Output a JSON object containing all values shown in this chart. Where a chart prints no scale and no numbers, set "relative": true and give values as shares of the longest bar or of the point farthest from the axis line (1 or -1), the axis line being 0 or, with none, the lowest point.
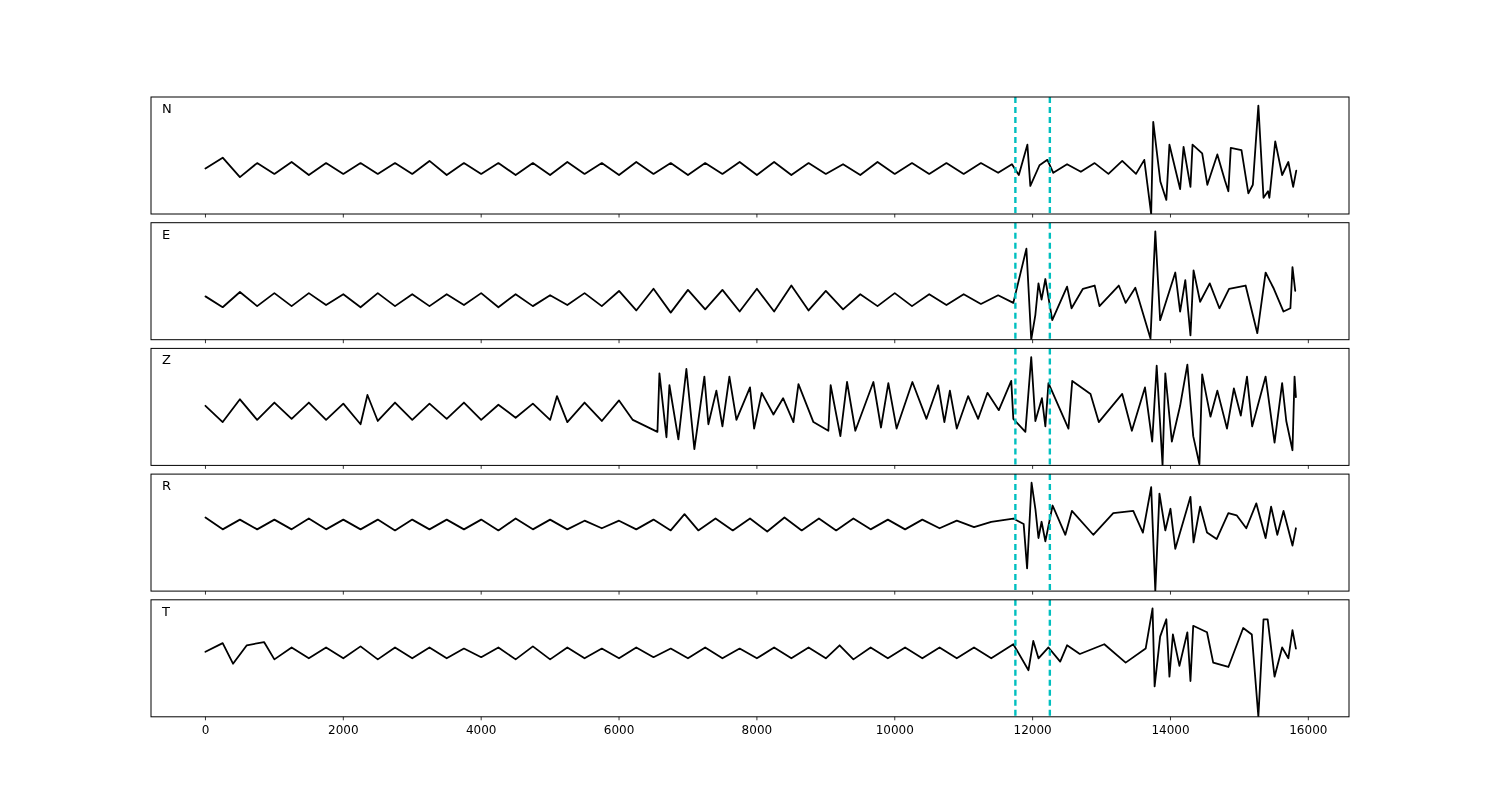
{
  "chart_data": [
    {
      "type": "line",
      "title": "N",
      "relative": true,
      "xlim": [
        -790,
        16590
      ],
      "xticks": [
        0,
        2000,
        4000,
        6000,
        8000,
        10000,
        12000,
        14000,
        16000
      ],
      "tick_labels": false,
      "grid": false,
      "line_style": "solid",
      "marker": "none",
      "ref_lines": [
        {
          "axis": "x",
          "value": 11750,
          "color": "#00bfbf",
          "line_style": "dashed"
        },
        {
          "axis": "x",
          "value": 12250,
          "color": "#00bfbf",
          "line_style": "dashed"
        }
      ],
      "x": [
        0,
        250,
        500,
        750,
        1000,
        1250,
        1500,
        1750,
        2000,
        2250,
        2500,
        2750,
        3000,
        3250,
        3500,
        3750,
        4000,
        4250,
        4500,
        4750,
        5000,
        5250,
        5500,
        5750,
        6000,
        6250,
        6500,
        6750,
        7000,
        7250,
        7500,
        7750,
        8000,
        8250,
        8500,
        8750,
        9000,
        9250,
        9500,
        9750,
        10000,
        10250,
        10500,
        10750,
        11000,
        11250,
        11500,
        11700,
        11800,
        11924,
        11967,
        12100,
        12214,
        12300,
        12500,
        12700,
        12900,
        13100,
        13300,
        13500,
        13620,
        13720,
        13750,
        13853,
        13940,
        13985,
        14140,
        14190,
        14290,
        14320,
        14460,
        14535,
        14680,
        14790,
        14840,
        14875,
        15030,
        15130,
        15195,
        15275,
        15350,
        15415,
        15435,
        15520,
        15620,
        15710,
        15780,
        15825
      ],
      "series": [
        {
          "color": "#000000",
          "values": [
            0.42,
            0.52,
            0.34,
            0.47,
            0.37,
            0.48,
            0.36,
            0.47,
            0.37,
            0.47,
            0.37,
            0.47,
            0.37,
            0.49,
            0.36,
            0.47,
            0.37,
            0.47,
            0.36,
            0.47,
            0.36,
            0.48,
            0.37,
            0.47,
            0.36,
            0.48,
            0.37,
            0.47,
            0.36,
            0.47,
            0.37,
            0.48,
            0.36,
            0.48,
            0.36,
            0.47,
            0.37,
            0.46,
            0.36,
            0.48,
            0.37,
            0.47,
            0.37,
            0.47,
            0.37,
            0.47,
            0.38,
            0.46,
            0.36,
            0.64,
            0.26,
            0.45,
            0.5,
            0.38,
            0.46,
            0.39,
            0.47,
            0.37,
            0.49,
            0.37,
            0.5,
            0.0,
            0.85,
            0.3,
            0.13,
            0.64,
            0.23,
            0.62,
            0.25,
            0.64,
            0.56,
            0.27,
            0.55,
            0.31,
            0.21,
            0.61,
            0.59,
            0.19,
            0.27,
            1.0,
            0.15,
            0.21,
            0.15,
            0.67,
            0.36,
            0.48,
            0.25,
            0.4
          ]
        }
      ]
    },
    {
      "type": "line",
      "title": "E",
      "relative": true,
      "xlim": [
        -790,
        16590
      ],
      "xticks": [
        0,
        2000,
        4000,
        6000,
        8000,
        10000,
        12000,
        14000,
        16000
      ],
      "tick_labels": false,
      "grid": false,
      "line_style": "solid",
      "marker": "none",
      "ref_lines": [
        {
          "axis": "x",
          "value": 11750,
          "color": "#00bfbf",
          "line_style": "dashed"
        },
        {
          "axis": "x",
          "value": 12250,
          "color": "#00bfbf",
          "line_style": "dashed"
        }
      ],
      "x": [
        0,
        250,
        500,
        750,
        1000,
        1250,
        1500,
        1750,
        2000,
        2250,
        2500,
        2750,
        3000,
        3250,
        3500,
        3750,
        4000,
        4250,
        4500,
        4750,
        5000,
        5250,
        5500,
        5750,
        6000,
        6250,
        6500,
        6750,
        7000,
        7250,
        7500,
        7750,
        8000,
        8250,
        8500,
        8750,
        9000,
        9250,
        9500,
        9750,
        10000,
        10250,
        10500,
        10750,
        11000,
        11250,
        11500,
        11720,
        11910,
        11980,
        12040,
        12085,
        12130,
        12185,
        12285,
        12500,
        12565,
        12730,
        12900,
        12970,
        13250,
        13350,
        13490,
        13710,
        13780,
        13850,
        14070,
        14140,
        14215,
        14290,
        14335,
        14430,
        14570,
        14710,
        14850,
        15090,
        15260,
        15380,
        15500,
        15640,
        15740,
        15770,
        15810
      ],
      "series": [
        {
          "color": "#000000",
          "values": [
            0.4,
            0.3,
            0.44,
            0.31,
            0.43,
            0.31,
            0.43,
            0.32,
            0.42,
            0.3,
            0.43,
            0.31,
            0.42,
            0.31,
            0.42,
            0.32,
            0.43,
            0.3,
            0.42,
            0.31,
            0.41,
            0.32,
            0.43,
            0.31,
            0.45,
            0.27,
            0.47,
            0.25,
            0.46,
            0.28,
            0.46,
            0.26,
            0.47,
            0.26,
            0.5,
            0.27,
            0.45,
            0.28,
            0.42,
            0.31,
            0.43,
            0.31,
            0.42,
            0.32,
            0.42,
            0.33,
            0.41,
            0.34,
            0.84,
            0.0,
            0.23,
            0.52,
            0.37,
            0.56,
            0.18,
            0.49,
            0.29,
            0.47,
            0.5,
            0.31,
            0.5,
            0.34,
            0.48,
            0.01,
            1.0,
            0.18,
            0.62,
            0.26,
            0.55,
            0.04,
            0.64,
            0.35,
            0.52,
            0.29,
            0.47,
            0.5,
            0.06,
            0.62,
            0.47,
            0.26,
            0.29,
            0.67,
            0.45
          ]
        }
      ]
    },
    {
      "type": "line",
      "title": "Z",
      "relative": true,
      "xlim": [
        -790,
        16590
      ],
      "xticks": [
        0,
        2000,
        4000,
        6000,
        8000,
        10000,
        12000,
        14000,
        16000
      ],
      "tick_labels": false,
      "grid": false,
      "line_style": "solid",
      "marker": "none",
      "ref_lines": [
        {
          "axis": "x",
          "value": 11750,
          "color": "#00bfbf",
          "line_style": "dashed"
        },
        {
          "axis": "x",
          "value": 12250,
          "color": "#00bfbf",
          "line_style": "dashed"
        }
      ],
      "x": [
        0,
        250,
        500,
        750,
        1000,
        1250,
        1500,
        1750,
        2000,
        2250,
        2350,
        2500,
        2750,
        3000,
        3250,
        3500,
        3750,
        4000,
        4250,
        4500,
        4750,
        5000,
        5100,
        5250,
        5500,
        5750,
        6000,
        6200,
        6557,
        6586,
        6688,
        6731,
        6861,
        6977,
        7093,
        7238,
        7296,
        7412,
        7500,
        7601,
        7703,
        7900,
        7960,
        8070,
        8240,
        8380,
        8530,
        8603,
        8820,
        9037,
        9070,
        9211,
        9308,
        9428,
        9690,
        9800,
        9907,
        10027,
        10256,
        10460,
        10630,
        10720,
        10800,
        10900,
        11065,
        11210,
        11345,
        11510,
        11690,
        11720,
        11895,
        11980,
        12040,
        12135,
        12185,
        12230,
        12520,
        12575,
        12840,
        12960,
        13300,
        13440,
        13630,
        13735,
        13800,
        13885,
        13925,
        14020,
        14140,
        14245,
        14330,
        14420,
        14460,
        14580,
        14680,
        14820,
        14920,
        15020,
        15110,
        15185,
        15380,
        15510,
        15620,
        15680,
        15770,
        15800,
        15820
      ],
      "series": [
        {
          "color": "#000000",
          "values": [
            0.55,
            0.4,
            0.61,
            0.42,
            0.58,
            0.43,
            0.58,
            0.42,
            0.57,
            0.38,
            0.65,
            0.41,
            0.58,
            0.42,
            0.57,
            0.43,
            0.58,
            0.42,
            0.56,
            0.44,
            0.57,
            0.42,
            0.64,
            0.4,
            0.58,
            0.41,
            0.6,
            0.42,
            0.31,
            0.85,
            0.26,
            0.74,
            0.24,
            0.89,
            0.15,
            0.82,
            0.38,
            0.69,
            0.36,
            0.82,
            0.42,
            0.72,
            0.34,
            0.67,
            0.47,
            0.62,
            0.4,
            0.75,
            0.4,
            0.32,
            0.74,
            0.27,
            0.77,
            0.32,
            0.77,
            0.35,
            0.76,
            0.34,
            0.77,
            0.43,
            0.74,
            0.4,
            0.69,
            0.34,
            0.64,
            0.43,
            0.67,
            0.51,
            0.78,
            0.43,
            0.31,
            1.0,
            0.41,
            0.62,
            0.36,
            0.76,
            0.34,
            0.78,
            0.66,
            0.4,
            0.66,
            0.32,
            0.72,
            0.22,
            0.92,
            0.0,
            0.85,
            0.22,
            0.55,
            0.93,
            0.27,
            0.01,
            0.84,
            0.45,
            0.69,
            0.34,
            0.71,
            0.46,
            0.82,
            0.36,
            0.82,
            0.21,
            0.76,
            0.41,
            0.14,
            0.82,
            0.63
          ]
        }
      ]
    },
    {
      "type": "line",
      "title": "R",
      "relative": true,
      "xlim": [
        -790,
        16590
      ],
      "xticks": [
        0,
        2000,
        4000,
        6000,
        8000,
        10000,
        12000,
        14000,
        16000
      ],
      "tick_labels": false,
      "grid": false,
      "line_style": "solid",
      "marker": "none",
      "ref_lines": [
        {
          "axis": "x",
          "value": 11750,
          "color": "#00bfbf",
          "line_style": "dashed"
        },
        {
          "axis": "x",
          "value": 12250,
          "color": "#00bfbf",
          "line_style": "dashed"
        }
      ],
      "x": [
        0,
        250,
        500,
        750,
        1000,
        1250,
        1500,
        1750,
        2000,
        2250,
        2500,
        2750,
        3000,
        3250,
        3500,
        3750,
        4000,
        4250,
        4500,
        4750,
        5000,
        5250,
        5500,
        5750,
        6000,
        6250,
        6500,
        6750,
        6950,
        7150,
        7400,
        7650,
        7900,
        8150,
        8400,
        8650,
        8900,
        9150,
        9400,
        9650,
        9900,
        10150,
        10400,
        10650,
        10900,
        11150,
        11400,
        11720,
        11870,
        11920,
        11985,
        12040,
        12085,
        12130,
        12185,
        12290,
        12475,
        12570,
        12880,
        13170,
        13460,
        13600,
        13720,
        13780,
        13840,
        13925,
        14000,
        14070,
        14290,
        14335,
        14430,
        14530,
        14670,
        14840,
        14960,
        15100,
        15245,
        15380,
        15460,
        15550,
        15640,
        15770,
        15820
      ],
      "series": [
        {
          "color": "#000000",
          "values": [
            0.68,
            0.57,
            0.66,
            0.57,
            0.66,
            0.57,
            0.67,
            0.57,
            0.66,
            0.57,
            0.66,
            0.56,
            0.66,
            0.57,
            0.66,
            0.57,
            0.66,
            0.56,
            0.67,
            0.57,
            0.66,
            0.57,
            0.65,
            0.58,
            0.65,
            0.57,
            0.66,
            0.56,
            0.71,
            0.56,
            0.67,
            0.56,
            0.67,
            0.55,
            0.68,
            0.56,
            0.67,
            0.56,
            0.67,
            0.57,
            0.66,
            0.57,
            0.66,
            0.58,
            0.65,
            0.59,
            0.64,
            0.67,
            0.62,
            0.21,
            1.0,
            0.76,
            0.49,
            0.64,
            0.46,
            0.79,
            0.52,
            0.74,
            0.52,
            0.72,
            0.74,
            0.54,
            0.96,
            0.0,
            0.9,
            0.56,
            0.76,
            0.39,
            0.87,
            0.45,
            0.78,
            0.54,
            0.48,
            0.72,
            0.7,
            0.58,
            0.81,
            0.49,
            0.78,
            0.52,
            0.74,
            0.42,
            0.58
          ]
        }
      ]
    },
    {
      "type": "line",
      "title": "T",
      "relative": true,
      "xlim": [
        -790,
        16590
      ],
      "xticks": [
        0,
        2000,
        4000,
        6000,
        8000,
        10000,
        12000,
        14000,
        16000
      ],
      "tick_labels": "x",
      "grid": false,
      "line_style": "solid",
      "marker": "none",
      "ref_lines": [
        {
          "axis": "x",
          "value": 11750,
          "color": "#00bfbf",
          "line_style": "dashed"
        },
        {
          "axis": "x",
          "value": 12250,
          "color": "#00bfbf",
          "line_style": "dashed"
        }
      ],
      "x": [
        0,
        250,
        400,
        600,
        850,
        1000,
        1250,
        1500,
        1750,
        2000,
        2250,
        2500,
        2750,
        3000,
        3250,
        3500,
        3750,
        4000,
        4250,
        4500,
        4750,
        5000,
        5250,
        5500,
        5750,
        6000,
        6250,
        6500,
        6750,
        7000,
        7250,
        7500,
        7750,
        8000,
        8250,
        8500,
        8750,
        9000,
        9200,
        9400,
        9650,
        9900,
        10150,
        10400,
        10650,
        10900,
        11150,
        11400,
        11720,
        11940,
        12010,
        12085,
        12230,
        12400,
        12500,
        12685,
        13040,
        13350,
        13640,
        13740,
        13770,
        13850,
        13940,
        13985,
        14035,
        14130,
        14245,
        14290,
        14330,
        14530,
        14620,
        14840,
        15055,
        15180,
        15275,
        15350,
        15410,
        15510,
        15620,
        15710,
        15770,
        15820
      ],
      "series": [
        {
          "color": "#000000",
          "values": [
            0.6,
            0.68,
            0.49,
            0.66,
            0.69,
            0.53,
            0.64,
            0.54,
            0.64,
            0.54,
            0.65,
            0.53,
            0.64,
            0.54,
            0.64,
            0.54,
            0.63,
            0.55,
            0.64,
            0.53,
            0.65,
            0.53,
            0.64,
            0.54,
            0.63,
            0.54,
            0.64,
            0.55,
            0.63,
            0.54,
            0.64,
            0.54,
            0.63,
            0.54,
            0.64,
            0.54,
            0.64,
            0.54,
            0.66,
            0.53,
            0.64,
            0.54,
            0.64,
            0.54,
            0.64,
            0.54,
            0.64,
            0.54,
            0.67,
            0.43,
            0.7,
            0.54,
            0.64,
            0.51,
            0.66,
            0.58,
            0.67,
            0.5,
            0.63,
            1.0,
            0.28,
            0.74,
            0.9,
            0.37,
            0.76,
            0.47,
            0.78,
            0.33,
            0.84,
            0.78,
            0.5,
            0.46,
            0.82,
            0.76,
            0.0,
            0.9,
            0.9,
            0.37,
            0.64,
            0.54,
            0.8,
            0.63
          ]
        }
      ]
    }
  ]
}
